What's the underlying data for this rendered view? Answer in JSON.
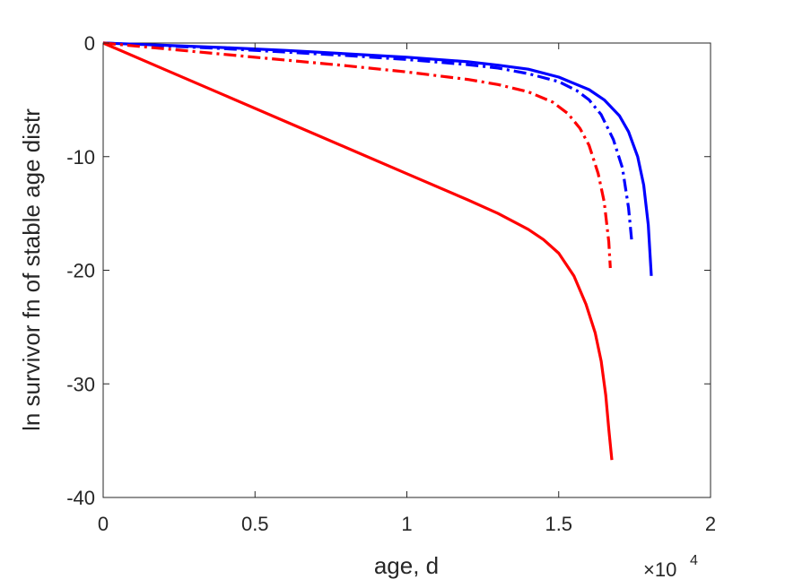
{
  "chart_data": {
    "type": "line",
    "title": "",
    "xlabel": "age, d",
    "ylabel": "ln survivor fn of stable age distr",
    "xlim": [
      0,
      20000
    ],
    "ylim": [
      -40,
      0
    ],
    "x_ticks": [
      0,
      5000,
      10000,
      15000,
      20000
    ],
    "x_tick_labels": [
      "0",
      "0.5",
      "1",
      "1.5",
      "2"
    ],
    "y_ticks": [
      -40,
      -30,
      -20,
      -10,
      0
    ],
    "y_tick_labels": [
      "-40",
      "-30",
      "-20",
      "-10",
      "0"
    ],
    "x_exponent": {
      "base": "×10",
      "power": "4"
    },
    "grid": false,
    "box": true,
    "series": [
      {
        "color": "#0000ff",
        "style": "solid",
        "x": [
          0,
          2000,
          4000,
          6000,
          8000,
          10000,
          12000,
          13000,
          14000,
          15000,
          16000,
          16500,
          17000,
          17300,
          17600,
          17800,
          17950,
          18050
        ],
        "y": [
          0,
          -0.2,
          -0.4,
          -0.65,
          -0.95,
          -1.25,
          -1.65,
          -1.95,
          -2.3,
          -3.0,
          -4.1,
          -5.0,
          -6.4,
          -7.8,
          -10.0,
          -12.5,
          -16.0,
          -20.5
        ]
      },
      {
        "color": "#0000ff",
        "style": "dashdot",
        "x": [
          0,
          2000,
          4000,
          6000,
          8000,
          10000,
          12000,
          13000,
          14000,
          15000,
          15600,
          16000,
          16400,
          16800,
          17100,
          17300,
          17400
        ],
        "y": [
          0,
          -0.25,
          -0.5,
          -0.8,
          -1.1,
          -1.45,
          -1.9,
          -2.2,
          -2.7,
          -3.4,
          -4.2,
          -5.0,
          -6.3,
          -8.5,
          -11.0,
          -14.5,
          -17.3
        ]
      },
      {
        "color": "#ff0000",
        "style": "dashdot",
        "x": [
          0,
          2000,
          4000,
          6000,
          8000,
          10000,
          12000,
          13000,
          14000,
          14800,
          15300,
          15700,
          16000,
          16300,
          16500,
          16650,
          16700
        ],
        "y": [
          0,
          -0.5,
          -1.0,
          -1.5,
          -2.0,
          -2.55,
          -3.2,
          -3.65,
          -4.3,
          -5.2,
          -6.2,
          -7.5,
          -9.0,
          -11.5,
          -14.0,
          -17.5,
          -19.8
        ]
      },
      {
        "color": "#ff0000",
        "style": "solid",
        "x": [
          0,
          2000,
          4000,
          6000,
          8000,
          10000,
          12000,
          13000,
          14000,
          14500,
          15000,
          15500,
          15900,
          16200,
          16400,
          16550,
          16650,
          16750
        ],
        "y": [
          0,
          -2.3,
          -4.6,
          -6.9,
          -9.2,
          -11.5,
          -13.8,
          -15.0,
          -16.4,
          -17.3,
          -18.5,
          -20.5,
          -23.0,
          -25.5,
          -28.0,
          -31.0,
          -34.0,
          -36.7
        ]
      }
    ]
  }
}
